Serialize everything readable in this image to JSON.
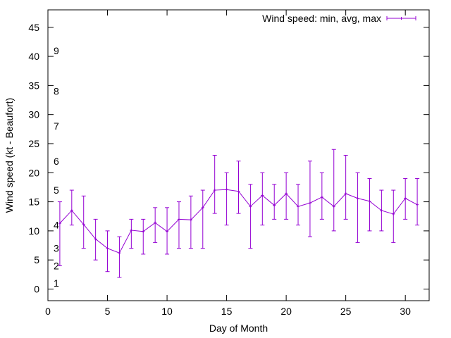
{
  "chart_data": {
    "type": "line",
    "xlabel": "Day of Month",
    "ylabel": "Wind speed (kt - Beaufort)",
    "xlim": [
      0,
      32
    ],
    "ylim": [
      -2,
      48
    ],
    "xticks": [
      "0",
      "5",
      "10",
      "15",
      "20",
      "25",
      "30"
    ],
    "yticks": [
      "0",
      "5",
      "10",
      "15",
      "20",
      "25",
      "30",
      "35",
      "40",
      "45"
    ],
    "grid": false,
    "legend_position": "top-right",
    "series_color": "#9400d3",
    "beaufort_labels": [
      {
        "label": "1",
        "y": 1
      },
      {
        "label": "2",
        "y": 4
      },
      {
        "label": "3",
        "y": 7
      },
      {
        "label": "4",
        "y": 11
      },
      {
        "label": "5",
        "y": 17
      },
      {
        "label": "6",
        "y": 22
      },
      {
        "label": "7",
        "y": 28
      },
      {
        "label": "8",
        "y": 34
      },
      {
        "label": "9",
        "y": 41
      }
    ],
    "series": [
      {
        "name": "Wind speed: min, avg, max",
        "x": [
          1,
          2,
          3,
          4,
          5,
          6,
          7,
          8,
          9,
          10,
          11,
          12,
          13,
          14,
          15,
          16,
          17,
          18,
          19,
          20,
          21,
          22,
          23,
          24,
          25,
          26,
          27,
          28,
          29,
          30,
          31
        ],
        "avg": [
          11.3,
          13.5,
          11.1,
          8.6,
          7.0,
          6.2,
          10.1,
          9.9,
          11.4,
          9.9,
          12.0,
          11.9,
          14.0,
          17.0,
          17.1,
          16.8,
          14.2,
          16.1,
          14.4,
          16.4,
          14.2,
          14.8,
          15.8,
          14.2,
          16.4,
          15.6,
          15.1,
          13.5,
          12.9,
          15.6,
          14.5
        ],
        "min": [
          4,
          11,
          7,
          5,
          3,
          2,
          7,
          6,
          8,
          6,
          7,
          7,
          7,
          13,
          11,
          13,
          7,
          11,
          12,
          12,
          11,
          9,
          12,
          10,
          12,
          8,
          10,
          10,
          8,
          12,
          11
        ],
        "max": [
          15,
          17,
          16,
          12,
          10,
          9,
          12,
          12,
          14,
          14,
          15,
          16,
          17,
          23,
          20,
          22,
          18,
          20,
          18,
          20,
          18,
          22,
          20,
          24,
          23,
          20,
          19,
          17,
          17,
          19,
          19
        ]
      }
    ]
  }
}
